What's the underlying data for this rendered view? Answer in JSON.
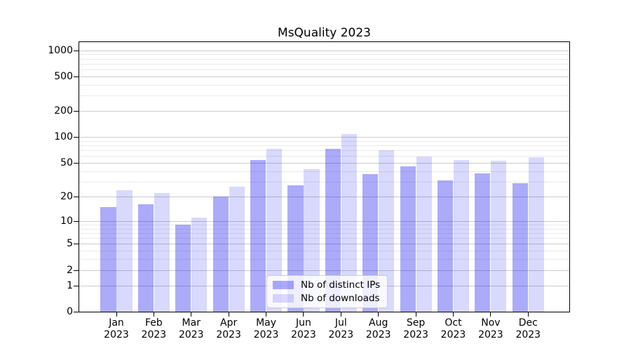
{
  "chart_data": {
    "type": "bar",
    "title": "MsQuality 2023",
    "categories": [
      "Jan",
      "Feb",
      "Mar",
      "Apr",
      "May",
      "Jun",
      "Jul",
      "Aug",
      "Sep",
      "Oct",
      "Nov",
      "Dec"
    ],
    "x_sub_label": "2023",
    "series": [
      {
        "key": "distinct-ips",
        "name": "Nb of distinct IPs",
        "color": "rgba(10,10,240,0.34)",
        "values": [
          15,
          16,
          9,
          20,
          54,
          27,
          73,
          37,
          46,
          31,
          38,
          29
        ]
      },
      {
        "key": "downloads",
        "name": "Nb of downloads",
        "color": "rgba(10,10,240,0.155)",
        "values": [
          24,
          22,
          11,
          26,
          73,
          42,
          108,
          70,
          60,
          54,
          53,
          58
        ]
      }
    ],
    "y_axis": {
      "scale": "log1p",
      "ticks": [
        0,
        1,
        2,
        5,
        10,
        20,
        50,
        100,
        200,
        500,
        1000
      ],
      "minor_gridlines": [
        3,
        4,
        6,
        7,
        8,
        9,
        30,
        40,
        60,
        70,
        80,
        90,
        300,
        400,
        600,
        700,
        800,
        900
      ],
      "max": 1243
    },
    "xlabel": "",
    "ylabel": "",
    "grid": true,
    "legend_position": "lower center"
  }
}
